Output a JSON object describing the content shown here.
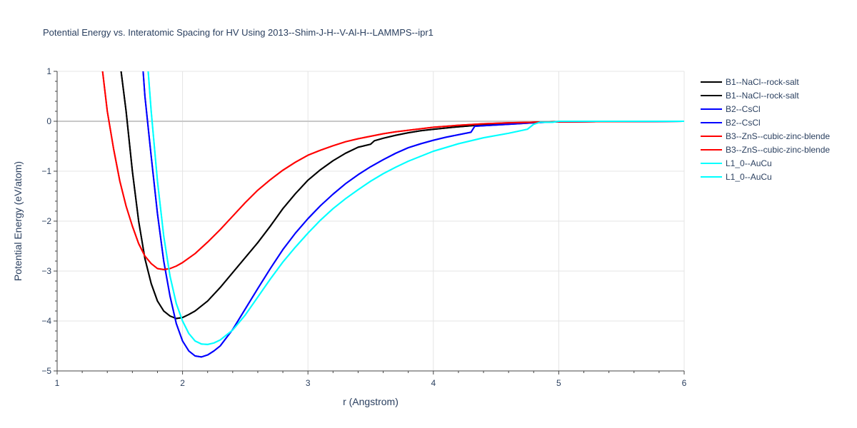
{
  "chart_data": {
    "type": "line",
    "title": "Potential Energy vs. Interatomic Spacing for HV Using 2013--Shim-J-H--V-Al-H--LAMMPS--ipr1",
    "xlabel": "r (Angstrom)",
    "ylabel": "Potential Energy (eV/atom)",
    "xlim": [
      1,
      6
    ],
    "ylim": [
      -5,
      1
    ],
    "xticks": [
      "1",
      "2",
      "3",
      "4",
      "5",
      "6"
    ],
    "yticks": [
      "1",
      "0",
      "−1",
      "−2",
      "−3",
      "−4",
      "−5"
    ],
    "grid": true,
    "legend_position": "top-right",
    "series": [
      {
        "name": "B1--NaCl--rock-salt",
        "color": "#000000",
        "x": [
          1.5,
          1.55,
          1.6,
          1.65,
          1.7,
          1.75,
          1.8,
          1.85,
          1.9,
          1.95,
          2.0,
          2.05,
          2.1,
          2.2,
          2.3,
          2.4,
          2.5,
          2.6,
          2.7,
          2.8,
          2.9,
          3.0,
          3.1,
          3.2,
          3.3,
          3.4,
          3.5,
          3.53,
          3.6,
          3.7,
          3.8,
          3.9,
          4.0,
          4.2,
          4.4,
          4.6,
          4.8,
          5.0,
          6.0
        ],
        "y": [
          1.2,
          0.2,
          -1.0,
          -2.0,
          -2.75,
          -3.25,
          -3.6,
          -3.8,
          -3.9,
          -3.95,
          -3.93,
          -3.87,
          -3.8,
          -3.6,
          -3.33,
          -3.03,
          -2.73,
          -2.43,
          -2.1,
          -1.75,
          -1.45,
          -1.18,
          -0.97,
          -0.79,
          -0.64,
          -0.52,
          -0.46,
          -0.39,
          -0.34,
          -0.28,
          -0.23,
          -0.19,
          -0.16,
          -0.11,
          -0.07,
          -0.04,
          -0.02,
          -0.01,
          0.0
        ]
      },
      {
        "name": "B1--NaCl--rock-salt",
        "color": "#000000",
        "x": [
          1.5,
          1.55,
          1.6,
          1.65,
          1.7,
          1.75,
          1.8,
          1.85,
          1.9,
          1.95,
          2.0,
          2.05,
          2.1,
          2.2,
          2.3,
          2.4,
          2.5,
          2.6,
          2.7,
          2.8,
          2.9,
          3.0,
          3.1,
          3.2,
          3.3,
          3.4,
          3.5,
          3.53,
          3.6,
          3.7,
          3.8,
          3.9,
          4.0,
          4.2,
          4.4,
          4.6,
          4.8,
          5.0,
          6.0
        ],
        "y": [
          1.2,
          0.2,
          -1.0,
          -2.0,
          -2.75,
          -3.25,
          -3.6,
          -3.8,
          -3.9,
          -3.95,
          -3.93,
          -3.87,
          -3.8,
          -3.6,
          -3.33,
          -3.03,
          -2.73,
          -2.43,
          -2.1,
          -1.75,
          -1.45,
          -1.18,
          -0.97,
          -0.79,
          -0.64,
          -0.52,
          -0.46,
          -0.39,
          -0.34,
          -0.28,
          -0.23,
          -0.19,
          -0.16,
          -0.11,
          -0.07,
          -0.04,
          -0.02,
          -0.01,
          0.0
        ]
      },
      {
        "name": "B2--CsCl",
        "color": "#0000ff",
        "x": [
          1.68,
          1.7,
          1.75,
          1.8,
          1.85,
          1.9,
          1.95,
          2.0,
          2.05,
          2.1,
          2.15,
          2.2,
          2.25,
          2.3,
          2.4,
          2.5,
          2.6,
          2.7,
          2.8,
          2.9,
          3.0,
          3.1,
          3.2,
          3.3,
          3.4,
          3.5,
          3.6,
          3.7,
          3.8,
          3.9,
          4.0,
          4.1,
          4.2,
          4.3,
          4.33,
          4.4,
          4.6,
          4.8,
          5.0,
          6.0
        ],
        "y": [
          1.2,
          0.5,
          -0.7,
          -1.85,
          -2.8,
          -3.5,
          -4.05,
          -4.4,
          -4.6,
          -4.7,
          -4.72,
          -4.68,
          -4.6,
          -4.5,
          -4.17,
          -3.76,
          -3.35,
          -2.95,
          -2.57,
          -2.24,
          -1.95,
          -1.69,
          -1.46,
          -1.25,
          -1.07,
          -0.91,
          -0.77,
          -0.64,
          -0.53,
          -0.45,
          -0.38,
          -0.32,
          -0.27,
          -0.22,
          -0.1,
          -0.09,
          -0.06,
          -0.03,
          -0.01,
          0.0
        ]
      },
      {
        "name": "B2--CsCl",
        "color": "#0000ff",
        "x": [
          1.68,
          1.7,
          1.75,
          1.8,
          1.85,
          1.9,
          1.95,
          2.0,
          2.05,
          2.1,
          2.15,
          2.2,
          2.25,
          2.3,
          2.4,
          2.5,
          2.6,
          2.7,
          2.8,
          2.9,
          3.0,
          3.1,
          3.2,
          3.3,
          3.4,
          3.5,
          3.6,
          3.7,
          3.8,
          3.9,
          4.0,
          4.1,
          4.2,
          4.3,
          4.33,
          4.4,
          4.6,
          4.8,
          5.0,
          6.0
        ],
        "y": [
          1.2,
          0.5,
          -0.7,
          -1.85,
          -2.8,
          -3.5,
          -4.05,
          -4.4,
          -4.6,
          -4.7,
          -4.72,
          -4.68,
          -4.6,
          -4.5,
          -4.17,
          -3.76,
          -3.35,
          -2.95,
          -2.57,
          -2.24,
          -1.95,
          -1.69,
          -1.46,
          -1.25,
          -1.07,
          -0.91,
          -0.77,
          -0.64,
          -0.53,
          -0.45,
          -0.38,
          -0.32,
          -0.27,
          -0.22,
          -0.1,
          -0.09,
          -0.06,
          -0.03,
          -0.01,
          0.0
        ]
      },
      {
        "name": "B3--ZnS--cubic-zinc-blende",
        "color": "#ff0000",
        "x": [
          1.36,
          1.4,
          1.45,
          1.5,
          1.55,
          1.6,
          1.65,
          1.7,
          1.75,
          1.8,
          1.85,
          1.9,
          1.95,
          2.0,
          2.1,
          2.2,
          2.3,
          2.4,
          2.5,
          2.6,
          2.7,
          2.8,
          2.9,
          3.0,
          3.1,
          3.2,
          3.3,
          3.4,
          3.5,
          3.6,
          3.7,
          3.8,
          3.9,
          4.0,
          4.2,
          4.4,
          4.6,
          4.8,
          5.0,
          6.0
        ],
        "y": [
          1.05,
          0.2,
          -0.55,
          -1.2,
          -1.7,
          -2.1,
          -2.45,
          -2.7,
          -2.85,
          -2.95,
          -2.97,
          -2.95,
          -2.9,
          -2.83,
          -2.65,
          -2.42,
          -2.17,
          -1.9,
          -1.63,
          -1.38,
          -1.17,
          -0.98,
          -0.82,
          -0.68,
          -0.58,
          -0.49,
          -0.41,
          -0.35,
          -0.3,
          -0.25,
          -0.21,
          -0.18,
          -0.15,
          -0.12,
          -0.08,
          -0.05,
          -0.03,
          -0.02,
          -0.01,
          0.0
        ]
      },
      {
        "name": "B3--ZnS--cubic-zinc-blende",
        "color": "#ff0000",
        "x": [
          1.36,
          1.4,
          1.45,
          1.5,
          1.55,
          1.6,
          1.65,
          1.7,
          1.75,
          1.8,
          1.85,
          1.9,
          1.95,
          2.0,
          2.1,
          2.2,
          2.3,
          2.4,
          2.5,
          2.6,
          2.7,
          2.8,
          2.9,
          3.0,
          3.1,
          3.2,
          3.3,
          3.4,
          3.5,
          3.6,
          3.7,
          3.8,
          3.9,
          4.0,
          4.2,
          4.4,
          4.6,
          4.8,
          5.0,
          6.0
        ],
        "y": [
          1.05,
          0.2,
          -0.55,
          -1.2,
          -1.7,
          -2.1,
          -2.45,
          -2.7,
          -2.85,
          -2.95,
          -2.97,
          -2.95,
          -2.9,
          -2.83,
          -2.65,
          -2.42,
          -2.17,
          -1.9,
          -1.63,
          -1.38,
          -1.17,
          -0.98,
          -0.82,
          -0.68,
          -0.58,
          -0.49,
          -0.41,
          -0.35,
          -0.3,
          -0.25,
          -0.21,
          -0.18,
          -0.15,
          -0.12,
          -0.08,
          -0.05,
          -0.03,
          -0.02,
          -0.01,
          0.0
        ]
      },
      {
        "name": "L1_0--AuCu",
        "color": "#00ffff",
        "x": [
          1.72,
          1.75,
          1.8,
          1.85,
          1.9,
          1.95,
          2.0,
          2.05,
          2.1,
          2.15,
          2.2,
          2.25,
          2.3,
          2.4,
          2.5,
          2.6,
          2.7,
          2.8,
          2.9,
          3.0,
          3.1,
          3.2,
          3.3,
          3.4,
          3.5,
          3.6,
          3.7,
          3.8,
          3.9,
          4.0,
          4.2,
          4.4,
          4.6,
          4.75,
          4.8,
          4.85,
          4.95,
          5.0,
          6.0
        ],
        "y": [
          1.2,
          0.2,
          -1.2,
          -2.3,
          -3.1,
          -3.65,
          -4.0,
          -4.25,
          -4.4,
          -4.46,
          -4.47,
          -4.44,
          -4.38,
          -4.18,
          -3.88,
          -3.52,
          -3.16,
          -2.82,
          -2.52,
          -2.24,
          -1.98,
          -1.75,
          -1.55,
          -1.37,
          -1.2,
          -1.05,
          -0.92,
          -0.8,
          -0.7,
          -0.6,
          -0.45,
          -0.33,
          -0.24,
          -0.16,
          -0.06,
          -0.02,
          -0.02,
          0.0,
          0.0
        ]
      },
      {
        "name": "L1_0--AuCu",
        "color": "#00ffff",
        "x": [
          1.72,
          1.75,
          1.8,
          1.85,
          1.9,
          1.95,
          2.0,
          2.05,
          2.1,
          2.15,
          2.2,
          2.25,
          2.3,
          2.4,
          2.5,
          2.6,
          2.7,
          2.8,
          2.9,
          3.0,
          3.1,
          3.2,
          3.3,
          3.4,
          3.5,
          3.6,
          3.7,
          3.8,
          3.9,
          4.0,
          4.2,
          4.4,
          4.6,
          4.75,
          4.8,
          4.85,
          4.95,
          5.0,
          6.0
        ],
        "y": [
          1.2,
          0.2,
          -1.2,
          -2.3,
          -3.1,
          -3.65,
          -4.0,
          -4.25,
          -4.4,
          -4.46,
          -4.47,
          -4.44,
          -4.38,
          -4.18,
          -3.88,
          -3.52,
          -3.16,
          -2.82,
          -2.52,
          -2.24,
          -1.98,
          -1.75,
          -1.55,
          -1.37,
          -1.2,
          -1.05,
          -0.92,
          -0.8,
          -0.7,
          -0.6,
          -0.45,
          -0.33,
          -0.24,
          -0.16,
          -0.06,
          -0.02,
          -0.02,
          0.0,
          0.0
        ]
      }
    ]
  }
}
